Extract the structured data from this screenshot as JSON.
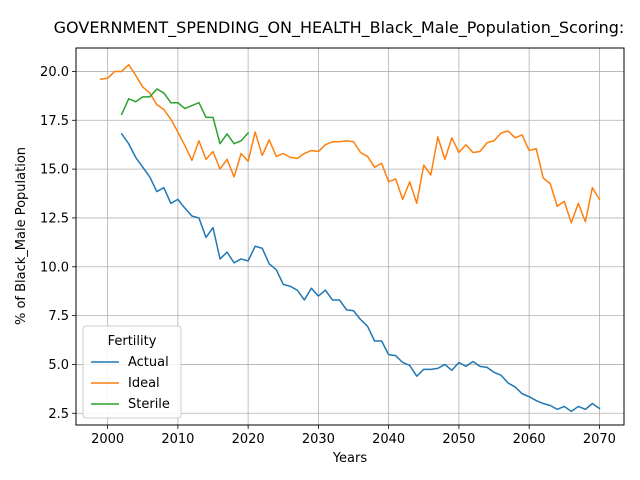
{
  "chart_data": {
    "type": "line",
    "title": "GOVERNMENT_SPENDING_ON_HEALTH_Black_Male_Population_Scoring:",
    "xlabel": "Years",
    "ylabel": "% of Black_Male Population",
    "xlim": [
      1995.5,
      2073.5
    ],
    "ylim": [
      1.9,
      21.2
    ],
    "xticks": [
      2000,
      2010,
      2020,
      2030,
      2040,
      2050,
      2060,
      2070
    ],
    "yticks": [
      2.5,
      5.0,
      7.5,
      10.0,
      12.5,
      15.0,
      17.5,
      20.0
    ],
    "grid": true,
    "legend": {
      "title": "Fertility",
      "position": "lower-left"
    },
    "colors": {
      "Actual": "#1f77b4",
      "Ideal": "#ff7f0e",
      "Sterile": "#2ca02c"
    },
    "series": [
      {
        "name": "Actual",
        "x": [
          2002,
          2003,
          2004,
          2005,
          2006,
          2007,
          2008,
          2009,
          2010,
          2011,
          2012,
          2013,
          2014,
          2015,
          2016,
          2017,
          2018,
          2019,
          2020,
          2021,
          2022,
          2023,
          2024,
          2025,
          2026,
          2027,
          2028,
          2029,
          2030,
          2031,
          2032,
          2033,
          2034,
          2035,
          2036,
          2037,
          2038,
          2039,
          2040,
          2041,
          2042,
          2043,
          2044,
          2045,
          2046,
          2047,
          2048,
          2049,
          2050,
          2051,
          2052,
          2053,
          2054,
          2055,
          2056,
          2057,
          2058,
          2059,
          2060,
          2061,
          2062,
          2063,
          2064,
          2065,
          2066,
          2067,
          2068,
          2069,
          2070
        ],
        "values": [
          16.8,
          16.3,
          15.6,
          15.1,
          14.6,
          13.85,
          14.05,
          13.25,
          13.45,
          13.0,
          12.6,
          12.5,
          11.5,
          12.0,
          10.4,
          10.75,
          10.2,
          10.4,
          10.3,
          11.05,
          10.95,
          10.15,
          9.85,
          9.1,
          9.0,
          8.8,
          8.3,
          8.9,
          8.5,
          8.8,
          8.3,
          8.3,
          7.8,
          7.75,
          7.3,
          6.95,
          6.2,
          6.2,
          5.5,
          5.45,
          5.1,
          4.95,
          4.4,
          4.75,
          4.75,
          4.8,
          5.0,
          4.7,
          5.1,
          4.9,
          5.15,
          4.9,
          4.85,
          4.6,
          4.45,
          4.05,
          3.85,
          3.5,
          3.35,
          3.15,
          3.0,
          2.9,
          2.7,
          2.85,
          2.6,
          2.85,
          2.7,
          3.0,
          2.75
        ]
      },
      {
        "name": "Ideal",
        "x": [
          1999,
          2000,
          2001,
          2002,
          2003,
          2004,
          2005,
          2006,
          2007,
          2008,
          2009,
          2010,
          2011,
          2012,
          2013,
          2014,
          2015,
          2016,
          2017,
          2018,
          2019,
          2020,
          2021,
          2022,
          2023,
          2024,
          2025,
          2026,
          2027,
          2028,
          2029,
          2030,
          2031,
          2032,
          2033,
          2034,
          2035,
          2036,
          2037,
          2038,
          2039,
          2040,
          2041,
          2042,
          2043,
          2044,
          2045,
          2046,
          2047,
          2048,
          2049,
          2050,
          2051,
          2052,
          2053,
          2054,
          2055,
          2056,
          2057,
          2058,
          2059,
          2060,
          2061,
          2062,
          2063,
          2064,
          2065,
          2066,
          2067,
          2068,
          2069,
          2070
        ],
        "values": [
          19.6,
          19.65,
          20.0,
          20.0,
          20.35,
          19.8,
          19.2,
          18.9,
          18.3,
          18.05,
          17.55,
          16.9,
          16.2,
          15.45,
          16.45,
          15.5,
          15.9,
          15.0,
          15.5,
          14.6,
          15.8,
          15.4,
          16.9,
          15.7,
          16.5,
          15.65,
          15.8,
          15.6,
          15.55,
          15.8,
          15.95,
          15.9,
          16.25,
          16.4,
          16.4,
          16.45,
          16.4,
          15.85,
          15.65,
          15.1,
          15.3,
          14.35,
          14.5,
          13.45,
          14.35,
          13.25,
          15.2,
          14.7,
          16.65,
          15.5,
          16.6,
          15.85,
          16.25,
          15.85,
          15.9,
          16.35,
          16.45,
          16.85,
          16.95,
          16.6,
          16.75,
          15.95,
          16.05,
          14.55,
          14.25,
          13.1,
          13.35,
          12.25,
          13.25,
          12.3,
          14.05,
          13.45
        ]
      },
      {
        "name": "Sterile",
        "x": [
          2002,
          2003,
          2004,
          2005,
          2006,
          2007,
          2008,
          2009,
          2010,
          2011,
          2012,
          2013,
          2014,
          2015,
          2016,
          2017,
          2018,
          2019,
          2020
        ],
        "values": [
          17.8,
          18.6,
          18.45,
          18.7,
          18.7,
          19.1,
          18.9,
          18.4,
          18.4,
          18.1,
          18.25,
          18.4,
          17.65,
          17.65,
          16.3,
          16.8,
          16.3,
          16.45,
          16.85
        ]
      }
    ]
  }
}
